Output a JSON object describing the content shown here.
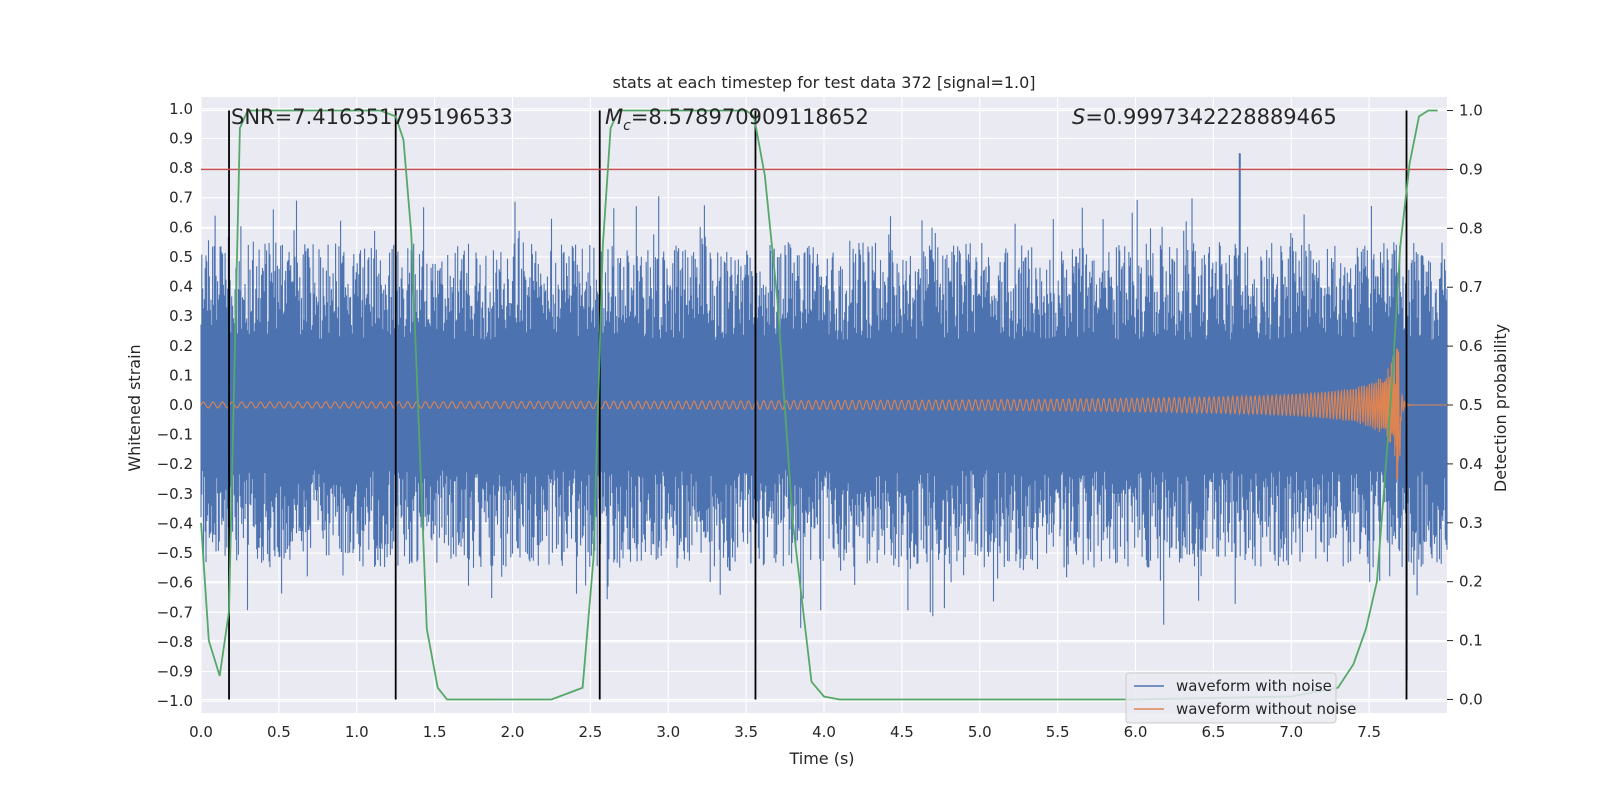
{
  "chart_data": {
    "type": "line",
    "title": "stats at each timestep for test data 372 [signal=1.0]",
    "xlabel": "Time (s)",
    "ylabel": "Whitened strain",
    "y2label": "Detection probability",
    "xlim": [
      0.0,
      8.0
    ],
    "ylim": [
      -1.04,
      1.04
    ],
    "y2lim": [
      -0.023,
      1.023
    ],
    "xticks": [
      "0.0",
      "0.5",
      "1.0",
      "1.5",
      "2.0",
      "2.5",
      "3.0",
      "3.5",
      "4.0",
      "4.5",
      "5.0",
      "5.5",
      "6.0",
      "6.5",
      "7.0",
      "7.5"
    ],
    "yticks": [
      "1.0",
      "0.9",
      "0.8",
      "0.7",
      "0.6",
      "0.5",
      "0.4",
      "0.3",
      "0.2",
      "0.1",
      "0.0",
      "−0.1",
      "−0.2",
      "−0.3",
      "−0.4",
      "−0.5",
      "−0.6",
      "−0.7",
      "−0.8",
      "−0.9",
      "−1.0"
    ],
    "y2ticks": [
      "1.0",
      "0.9",
      "0.8",
      "0.7",
      "0.6",
      "0.5",
      "0.4",
      "0.3",
      "0.2",
      "0.1",
      "0.0"
    ],
    "annotations": {
      "snr": "SNR=7.416351795196533",
      "mc_symbol": "M",
      "mc_sub": "c",
      "mc_value": "=8.578970909118652",
      "s_symbol": "S",
      "s_value": "=0.9997342228889465"
    },
    "threshold": {
      "y2": 0.9,
      "color": "#c44e52"
    },
    "vertical_lines": [
      0.18,
      1.25,
      2.56,
      3.56,
      7.74
    ],
    "noise_envelope": {
      "core_amplitude": 0.22,
      "typical_peak_range": [
        0.3,
        0.55
      ],
      "max_positive": {
        "x": 6.67,
        "y": 0.85
      },
      "min_negative": {
        "x": 7.74,
        "y": -0.93
      }
    },
    "series": [
      {
        "name": "waveform with noise",
        "color": "#4c72b0"
      },
      {
        "name": "waveform without noise",
        "color": "#dd8452",
        "amplitude_start": 0.01,
        "peak": {
          "x": 7.68,
          "y": 0.19,
          "y_min": -0.25
        },
        "merger_time": 7.7
      },
      {
        "name": "Detection probability",
        "axis": "y2",
        "color": "#55a868",
        "x": [
          0.0,
          0.05,
          0.12,
          0.18,
          0.25,
          0.3,
          0.35,
          0.5,
          1.0,
          1.15,
          1.25,
          1.3,
          1.35,
          1.45,
          1.52,
          1.58,
          2.0,
          2.25,
          2.35,
          2.45,
          2.52,
          2.58,
          2.63,
          2.68,
          3.0,
          3.5,
          3.55,
          3.62,
          3.7,
          3.8,
          3.92,
          4.0,
          4.1,
          5.0,
          6.0,
          7.0,
          7.3,
          7.4,
          7.48,
          7.55,
          7.6,
          7.65,
          7.7,
          7.76,
          7.82,
          7.88,
          7.94
        ],
        "y": [
          0.3,
          0.1,
          0.04,
          0.15,
          0.97,
          1.0,
          1.0,
          1.0,
          1.0,
          1.0,
          0.99,
          0.95,
          0.79,
          0.12,
          0.02,
          0.0,
          0.0,
          0.0,
          0.01,
          0.02,
          0.24,
          0.77,
          0.97,
          1.0,
          1.0,
          1.0,
          0.99,
          0.89,
          0.68,
          0.3,
          0.03,
          0.005,
          0.0,
          0.0,
          0.0,
          0.005,
          0.02,
          0.06,
          0.12,
          0.2,
          0.37,
          0.55,
          0.77,
          0.91,
          0.99,
          1.0,
          1.0
        ]
      }
    ],
    "legend": {
      "position": "lower-right",
      "entries": [
        "waveform with noise",
        "waveform without noise"
      ]
    },
    "background": "#eaeaf2",
    "grid": true
  }
}
